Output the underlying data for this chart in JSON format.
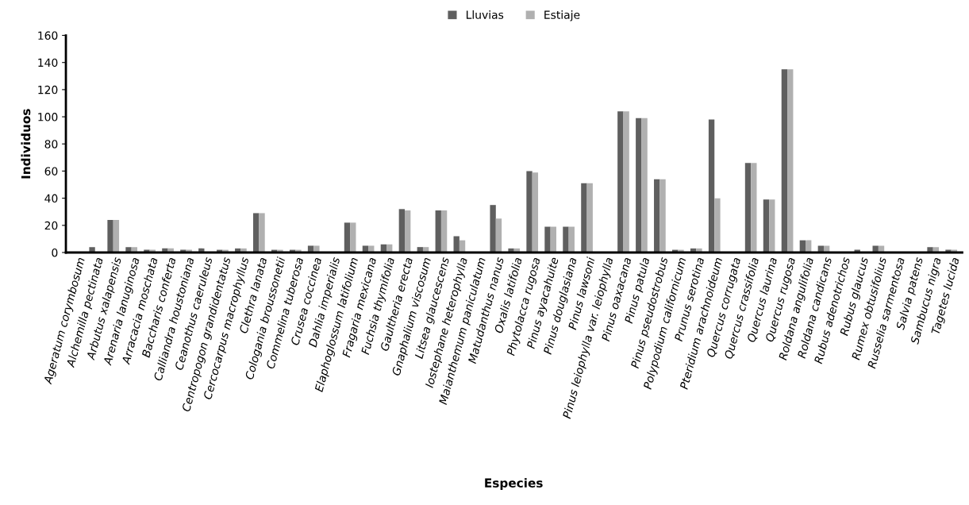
{
  "chart_data": {
    "type": "bar",
    "xlabel": "Especies",
    "ylabel": "Individuos",
    "categories": [
      "Ageratum corymbosum",
      "Alchemilla pectinata",
      "Arbutus xalapensis",
      "Arenaria lanuginosa",
      "Arracacia moschata",
      "Baccharis conferta",
      "Calliandra houstoniana",
      "Ceanothus caeruleus",
      "Centropogon grandidentatus",
      "Cercocarpus macrophyllus",
      "Clethra lanata",
      "Cologania broussonetii",
      "Commelina tuberosa",
      "Crusea coccinea",
      "Dahlia imperialis",
      "Elaphoglossum latifolium",
      "Fragaria mexicana",
      "Fuchsia thymifolia",
      "Gaultheria erecta",
      "Gnaphalium viscosum",
      "Litsea glaucescens",
      "Iostephane heterophylla",
      "Maianthemum paniculatum",
      "Matudanthus nanus",
      "Oxalis latifolia",
      "Phytolacca rugosa",
      "Pinus ayacahuite",
      "Pinus douglasiana",
      "Pinus lawsoni",
      "Pinus leiophylla var. leiophylla",
      "Pinus oaxacana",
      "Pinus patula",
      "Pinus pseudostrobus",
      "Polypodium californicum",
      "Prunus serotina",
      "Pteridium arachnoideum",
      "Quercus corrugata",
      "Quercus crassifolia",
      "Quercus laurina",
      "Quercus rugosa",
      "Roldana angulifolia",
      "Roldana candicans",
      "Rubus adenotrichos",
      "Rubus glaucus",
      "Rumex obtusifolius",
      "Russelia sarmentosa",
      "Salvia patens",
      "Sambucus nigra",
      "Tagetes lucida"
    ],
    "series": [
      {
        "name": "Lluvias",
        "color": "#5f5f5f",
        "values": [
          0,
          4,
          24,
          4,
          2,
          3,
          2,
          3,
          2,
          3,
          29,
          2,
          2,
          5,
          0,
          22,
          5,
          6,
          32,
          4,
          31,
          12,
          0,
          35,
          3,
          60,
          19,
          19,
          51,
          0,
          104,
          99,
          54,
          2,
          3,
          98,
          0,
          66,
          39,
          135,
          9,
          5,
          0,
          2,
          5,
          0,
          0,
          4,
          2
        ]
      },
      {
        "name": "Estiaje",
        "color": "#b0b0b0",
        "values": [
          0,
          0,
          24,
          4,
          2,
          3,
          2,
          0,
          2,
          3,
          29,
          2,
          2,
          5,
          0,
          22,
          5,
          6,
          31,
          4,
          31,
          9,
          0,
          25,
          3,
          59,
          19,
          19,
          51,
          0,
          104,
          99,
          54,
          2,
          3,
          40,
          0,
          66,
          39,
          135,
          9,
          5,
          0,
          0,
          5,
          0,
          0,
          4,
          2
        ]
      }
    ],
    "ylim": [
      0,
      160
    ],
    "yticks": [
      0,
      20,
      40,
      60,
      80,
      100,
      120,
      140,
      160
    ],
    "grid": false,
    "legend": "top"
  }
}
